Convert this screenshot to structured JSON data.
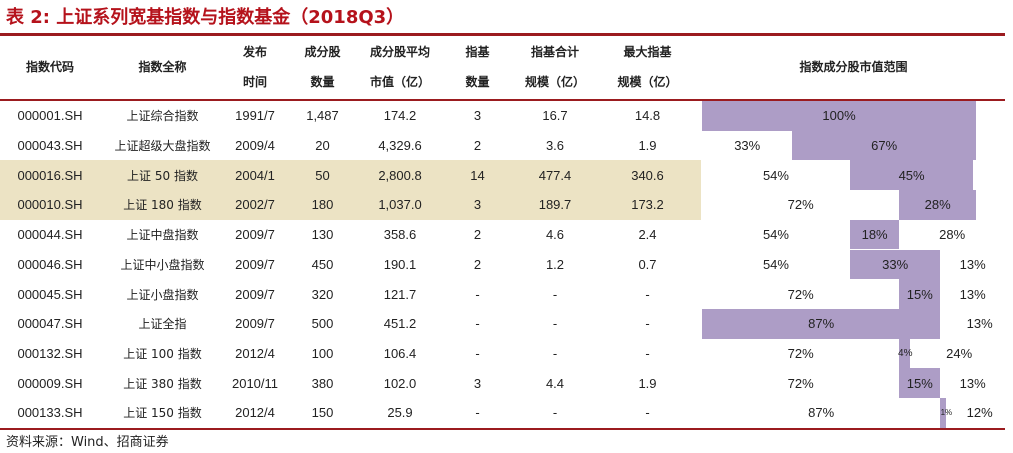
{
  "title": "表 2:  上证系列宽基指数与指数基金（2018Q3）",
  "headers": {
    "code": "指数代码",
    "name": "指数全称",
    "date_l1": "发布",
    "date_l2": "时间",
    "count_l1": "成分股",
    "count_l2": "数量",
    "avgcap_l1": "成分股平均",
    "avgcap_l2": "市值（亿）",
    "funds_l1": "指基",
    "funds_l2": "数量",
    "total_l1": "指基合计",
    "total_l2": "规模（亿）",
    "max_l1": "最大指基",
    "max_l2": "规模（亿）",
    "dist": "指数成分股市值范围"
  },
  "rows": [
    {
      "code": "000001.SH",
      "name": "上证综合指数",
      "date": "1991/7",
      "count": "1,487",
      "avgcap": "174.2",
      "funds": "3",
      "total": "16.7",
      "max": "14.8",
      "dist": [
        1.0,
        0,
        0
      ],
      "labels": [
        "100%",
        "",
        ""
      ],
      "highlight": false
    },
    {
      "code": "000043.SH",
      "name": "上证超级大盘指数",
      "date": "2009/4",
      "count": "20",
      "avgcap": "4,329.6",
      "funds": "2",
      "total": "3.6",
      "max": "1.9",
      "dist": [
        0.33,
        0.67,
        0
      ],
      "labels": [
        "33%",
        "67%",
        ""
      ],
      "highlight": false
    },
    {
      "code": "000016.SH",
      "name": "上证 50 指数",
      "date": "2004/1",
      "count": "50",
      "avgcap": "2,800.8",
      "funds": "14",
      "total": "477.4",
      "max": "340.6",
      "dist": [
        0.54,
        0.45,
        0
      ],
      "labels": [
        "54%",
        "45%",
        ""
      ],
      "highlight": true
    },
    {
      "code": "000010.SH",
      "name": "上证 180 指数",
      "date": "2002/7",
      "count": "180",
      "avgcap": "1,037.0",
      "funds": "3",
      "total": "189.7",
      "max": "173.2",
      "dist": [
        0.72,
        0.28,
        0
      ],
      "labels": [
        "72%",
        "28%",
        ""
      ],
      "highlight": true
    },
    {
      "code": "000044.SH",
      "name": "上证中盘指数",
      "date": "2009/7",
      "count": "130",
      "avgcap": "358.6",
      "funds": "2",
      "total": "4.6",
      "max": "2.4",
      "dist": [
        0.54,
        0.18,
        0.28
      ],
      "labels": [
        "54%",
        "18%",
        "28%"
      ],
      "highlight": false
    },
    {
      "code": "000046.SH",
      "name": "上证中小盘指数",
      "date": "2009/7",
      "count": "450",
      "avgcap": "190.1",
      "funds": "2",
      "total": "1.2",
      "max": "0.7",
      "dist": [
        0.54,
        0.33,
        0.13
      ],
      "labels": [
        "54%",
        "33%",
        "13%"
      ],
      "highlight": false
    },
    {
      "code": "000045.SH",
      "name": "上证小盘指数",
      "date": "2009/7",
      "count": "320",
      "avgcap": "121.7",
      "funds": "-",
      "total": "-",
      "max": "-",
      "dist": [
        0.72,
        0.15,
        0.13
      ],
      "labels": [
        "72%",
        "15%",
        "13%"
      ],
      "highlight": false
    },
    {
      "code": "000047.SH",
      "name": "上证全指",
      "date": "2009/7",
      "count": "500",
      "avgcap": "451.2",
      "funds": "-",
      "total": "-",
      "max": "-",
      "dist": [
        0.87,
        0,
        0.13
      ],
      "labels": [
        "87%",
        "",
        "13%"
      ],
      "highlight": false
    },
    {
      "code": "000132.SH",
      "name": "上证 100 指数",
      "date": "2012/4",
      "count": "100",
      "avgcap": "106.4",
      "funds": "-",
      "total": "-",
      "max": "-",
      "dist": [
        0.72,
        0.04,
        0.24
      ],
      "labels": [
        "72%",
        "4%",
        "24%"
      ],
      "highlight": false
    },
    {
      "code": "000009.SH",
      "name": "上证 380 指数",
      "date": "2010/11",
      "count": "380",
      "avgcap": "102.0",
      "funds": "3",
      "total": "4.4",
      "max": "1.9",
      "dist": [
        0.72,
        0.15,
        0.13
      ],
      "labels": [
        "72%",
        "15%",
        "13%"
      ],
      "highlight": false
    },
    {
      "code": "000133.SH",
      "name": "上证 150 指数",
      "date": "2012/4",
      "count": "150",
      "avgcap": "25.9",
      "funds": "-",
      "total": "-",
      "max": "-",
      "dist": [
        0.87,
        0.01,
        0.12
      ],
      "labels": [
        "87%",
        "1%",
        "12%"
      ],
      "highlight": false
    }
  ],
  "bar_rule": "Each row: segment 1 (large cap) and segment 3 (small cap) are white; the purple bar covers segment 2 (mid), or segment 1 when there is no segment 2.",
  "colors": {
    "title": "#b5121b",
    "rule": "#9b1b1f",
    "bar": "#ad9dc6",
    "highlight": "#ece3c4"
  },
  "source": "资料来源：Wind、招商证券"
}
